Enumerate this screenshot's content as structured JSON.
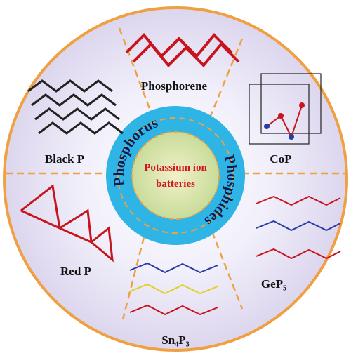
{
  "center_label": [
    "Potassium ion",
    "batteries"
  ],
  "ring_labels": {
    "left": "Phosphorus",
    "right": "Phosphides"
  },
  "segments": [
    {
      "label": "Phosphorene"
    },
    {
      "label": "CoP"
    },
    {
      "label": "GeP₅"
    },
    {
      "label": "Sn₄P₃"
    },
    {
      "label": "Red P"
    },
    {
      "label": "Black P"
    }
  ]
}
